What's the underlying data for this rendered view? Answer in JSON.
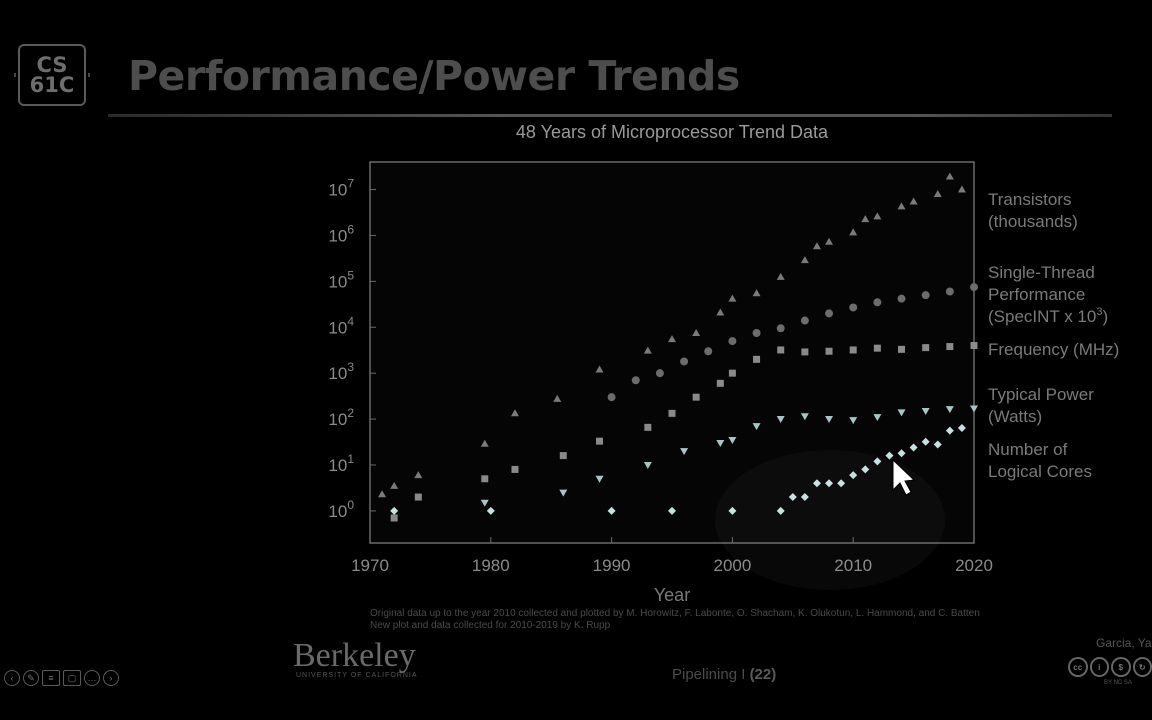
{
  "slide": {
    "logo_line1": "CS",
    "logo_line2": "61C",
    "title": "Performance/Power Trends",
    "footnote_line1": "Original data up to the year 2010 collected and plotted by M. Horowitz, F. Labonte, O. Shacham, K. Olukotun, L. Hammond, and C. Batten",
    "footnote_line2": "New plot and data collected for 2010-2019 by K. Rupp",
    "university": "Berkeley",
    "university_sub": "UNIVERSITY OF CALIFORNIA",
    "footer_topic": "Pipelining I",
    "footer_page": "(22)",
    "author": "Garcia, Yan",
    "license_sub": "BY   NC   SA"
  },
  "nav_icons": [
    "prev-icon",
    "pen-icon",
    "menu-icon",
    "slide-icon",
    "more-icon",
    "next-icon"
  ],
  "chart_data": {
    "type": "scatter",
    "title": "48 Years of Microprocessor Trend Data",
    "xlabel": "Year",
    "ylabel": "",
    "xlim": [
      1970,
      2020
    ],
    "ylim_log10": [
      -0.7,
      7.6
    ],
    "yscale": "log",
    "x_ticks": [
      "1970",
      "1980",
      "1990",
      "2000",
      "2010",
      "2020"
    ],
    "y_ticks": [
      {
        "exp": "0"
      },
      {
        "exp": "1"
      },
      {
        "exp": "2"
      },
      {
        "exp": "3"
      },
      {
        "exp": "4"
      },
      {
        "exp": "5"
      },
      {
        "exp": "6"
      },
      {
        "exp": "7"
      }
    ],
    "y_tick_base": "10",
    "legend_placement": "right",
    "series": [
      {
        "name": "Transistors (thousands)",
        "label_lines": [
          "Transistors",
          "(thousands)"
        ],
        "marker": "triangle",
        "color": "#7a7a7a",
        "points": [
          [
            1971,
            2.3
          ],
          [
            1972,
            3.5
          ],
          [
            1974,
            6
          ],
          [
            1979.5,
            29
          ],
          [
            1982,
            134
          ],
          [
            1985.5,
            275
          ],
          [
            1989,
            1200
          ],
          [
            1993,
            3100
          ],
          [
            1995,
            5500
          ],
          [
            1997,
            7500
          ],
          [
            1999,
            21000
          ],
          [
            2000,
            42000
          ],
          [
            2002,
            55000
          ],
          [
            2004,
            125000
          ],
          [
            2006,
            290000
          ],
          [
            2007,
            580000
          ],
          [
            2008,
            731000
          ],
          [
            2010,
            1170000
          ],
          [
            2011,
            2270000
          ],
          [
            2012,
            2600000
          ],
          [
            2014,
            4300000
          ],
          [
            2015,
            5500000
          ],
          [
            2017,
            8000000
          ],
          [
            2018,
            19200000
          ],
          [
            2019,
            10000000
          ]
        ]
      },
      {
        "name": "Single-Thread Performance (SpecINT x 10^3)",
        "label_lines": [
          "Single-Thread",
          "Performance",
          "(SpecINT x 10"
        ],
        "label_sup": "3",
        "marker": "circle",
        "color": "#6c6c6c",
        "points": [
          [
            1990,
            300
          ],
          [
            1992,
            700
          ],
          [
            1994,
            1000
          ],
          [
            1996,
            1800
          ],
          [
            1998,
            3000
          ],
          [
            2000,
            5000
          ],
          [
            2002,
            7500
          ],
          [
            2004,
            9500
          ],
          [
            2006,
            14000
          ],
          [
            2008,
            20000
          ],
          [
            2010,
            27000
          ],
          [
            2012,
            35000
          ],
          [
            2014,
            42000
          ],
          [
            2016,
            50000
          ],
          [
            2018,
            60000
          ],
          [
            2020,
            75000
          ]
        ]
      },
      {
        "name": "Frequency (MHz)",
        "label_lines": [
          "Frequency (MHz)"
        ],
        "marker": "square",
        "color": "#8a8a8a",
        "points": [
          [
            1972,
            0.7
          ],
          [
            1974,
            2
          ],
          [
            1979.5,
            5
          ],
          [
            1982,
            8
          ],
          [
            1986,
            16
          ],
          [
            1989,
            33
          ],
          [
            1993,
            66
          ],
          [
            1995,
            133
          ],
          [
            1997,
            300
          ],
          [
            1999,
            600
          ],
          [
            2000,
            1000
          ],
          [
            2002,
            2000
          ],
          [
            2004,
            3200
          ],
          [
            2006,
            2900
          ],
          [
            2008,
            3000
          ],
          [
            2010,
            3200
          ],
          [
            2012,
            3500
          ],
          [
            2014,
            3300
          ],
          [
            2016,
            3600
          ],
          [
            2018,
            3800
          ],
          [
            2020,
            4000
          ]
        ]
      },
      {
        "name": "Typical Power (Watts)",
        "label_lines": [
          "Typical Power",
          "(Watts)"
        ],
        "marker": "triangle-down",
        "color": "#a8c4c4",
        "points": [
          [
            1979.5,
            1.5
          ],
          [
            1986,
            2.5
          ],
          [
            1989,
            5
          ],
          [
            1993,
            10
          ],
          [
            1996,
            20
          ],
          [
            1999,
            30
          ],
          [
            2000,
            35
          ],
          [
            2002,
            70
          ],
          [
            2004,
            100
          ],
          [
            2006,
            115
          ],
          [
            2008,
            100
          ],
          [
            2010,
            95
          ],
          [
            2012,
            110
          ],
          [
            2014,
            140
          ],
          [
            2016,
            150
          ],
          [
            2018,
            165
          ],
          [
            2020,
            170
          ]
        ]
      },
      {
        "name": "Number of Logical Cores",
        "label_lines": [
          "Number of",
          "Logical Cores"
        ],
        "marker": "diamond",
        "color": "#c8e0e0",
        "points": [
          [
            1972,
            1
          ],
          [
            1980,
            1
          ],
          [
            1990,
            1
          ],
          [
            1995,
            1
          ],
          [
            2000,
            1
          ],
          [
            2004,
            1
          ],
          [
            2005,
            2
          ],
          [
            2006,
            2
          ],
          [
            2007,
            4
          ],
          [
            2008,
            4
          ],
          [
            2009,
            4
          ],
          [
            2010,
            6
          ],
          [
            2011,
            8
          ],
          [
            2012,
            12
          ],
          [
            2013,
            16
          ],
          [
            2014,
            18
          ],
          [
            2015,
            24
          ],
          [
            2016,
            32
          ],
          [
            2017,
            28
          ],
          [
            2018,
            56
          ],
          [
            2019,
            64
          ]
        ]
      }
    ]
  }
}
